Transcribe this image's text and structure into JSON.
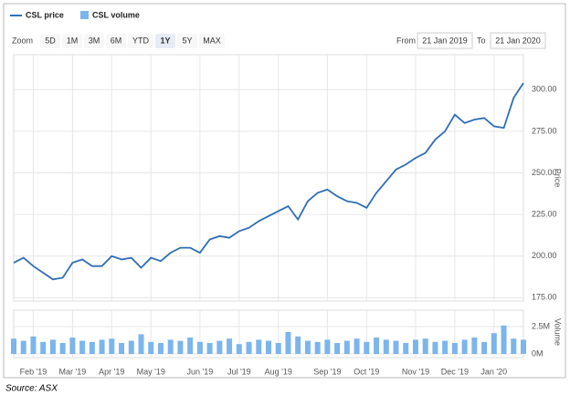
{
  "toolbar": {
    "zoom_label": "Zoom",
    "zoom_buttons": [
      "5D",
      "1M",
      "3M",
      "6M",
      "YTD",
      "1Y",
      "5Y",
      "MAX"
    ],
    "active_button": "1Y",
    "from_label": "From",
    "from_date": "21 Jan 2019",
    "to_label": "To",
    "to_date": "21 Jan 2020"
  },
  "source": "Source: ASX",
  "chart_data": {
    "type": "line",
    "categories": [
      null,
      null,
      "Feb '19",
      null,
      null,
      null,
      "Mar '19",
      null,
      null,
      null,
      "Apr '19",
      null,
      null,
      null,
      "May '19",
      null,
      null,
      null,
      null,
      "Jun '19",
      null,
      null,
      null,
      "Jul '19",
      null,
      null,
      null,
      "Aug '19",
      null,
      null,
      null,
      null,
      "Sep '19",
      null,
      null,
      null,
      "Oct '19",
      null,
      null,
      null,
      null,
      "Nov '19",
      null,
      null,
      null,
      "Dec '19",
      null,
      null,
      null,
      "Jan '20",
      null,
      null,
      null
    ],
    "series": [
      {
        "name": "CSL price",
        "color": "#2f6eb5",
        "values": [
          196,
          199,
          194,
          190,
          186,
          187,
          196,
          198,
          194,
          194,
          200,
          198,
          199,
          193,
          199,
          197,
          202,
          205,
          205,
          202,
          210,
          212,
          211,
          215,
          217,
          221,
          224,
          227,
          230,
          222,
          233,
          238,
          240,
          236,
          233,
          232,
          229,
          238,
          245,
          252,
          255,
          259,
          262,
          270,
          275,
          285,
          280,
          282,
          283,
          278,
          277,
          295,
          304
        ]
      },
      {
        "name": "CSL volume",
        "color": "#7cb5ec",
        "type": "bar",
        "axis": "y2",
        "values": [
          1400000,
          1200000,
          1600000,
          1100000,
          1300000,
          1000000,
          1500000,
          1200000,
          1100000,
          1300000,
          1400000,
          1000000,
          1200000,
          1800000,
          1100000,
          1000000,
          1300000,
          1200000,
          1500000,
          1100000,
          1000000,
          1200000,
          1400000,
          900000,
          1100000,
          1300000,
          1200000,
          1000000,
          2000000,
          1600000,
          1200000,
          1100000,
          1300000,
          1000000,
          1200000,
          1400000,
          1100000,
          1500000,
          1300000,
          1200000,
          1000000,
          1300000,
          1400000,
          1100000,
          1200000,
          1000000,
          1300000,
          1500000,
          1100000,
          1900000,
          2600000,
          1400000,
          1300000
        ]
      }
    ],
    "ylabel": "Price",
    "ylim": [
      173,
      321
    ],
    "yticks": [
      {
        "value": 175,
        "label": "175.00"
      },
      {
        "value": 200,
        "label": "200.00"
      },
      {
        "value": 225,
        "label": "225.00"
      },
      {
        "value": 250,
        "label": "250.00"
      },
      {
        "value": 275,
        "label": "275.00"
      },
      {
        "value": 300,
        "label": "300.00"
      }
    ],
    "y2label": "Volume",
    "y2lim": [
      0,
      4000000
    ],
    "y2ticks": [
      {
        "value": 0,
        "label": "0M"
      },
      {
        "value": 2500000,
        "label": "2.5M"
      }
    ],
    "grid": true
  }
}
